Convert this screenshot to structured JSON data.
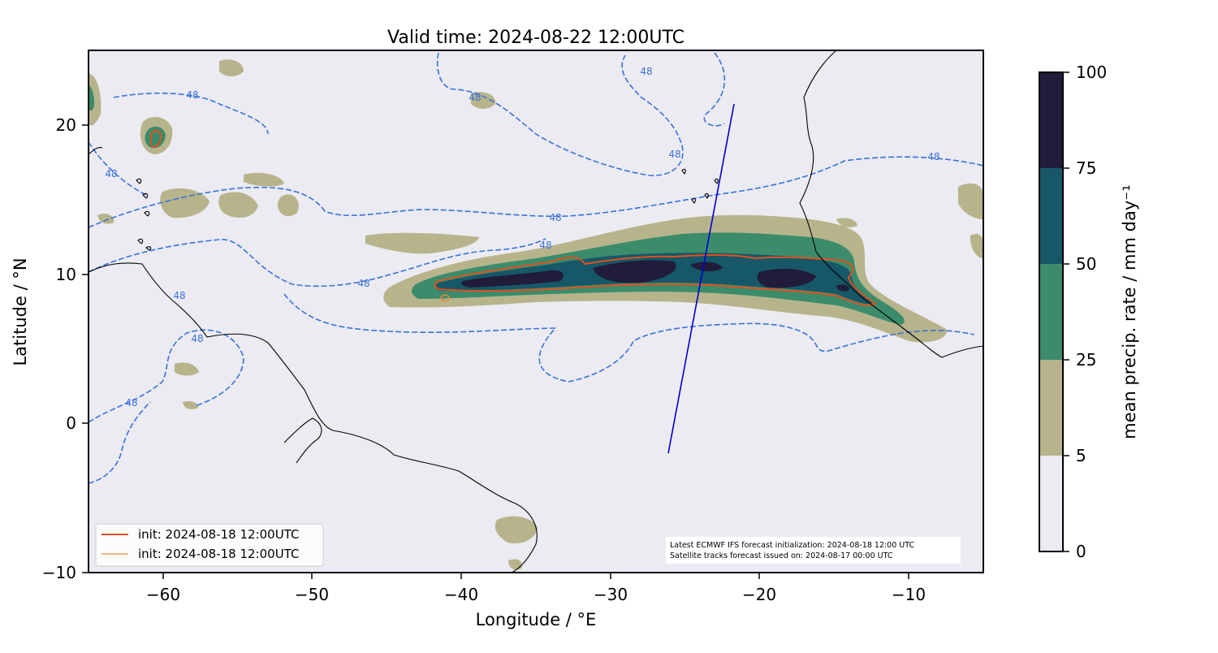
{
  "title": "Valid time: 2024-08-22 12:00UTC",
  "xlabel": "Longitude / °E",
  "ylabel": "Latitude / °N",
  "x_ticks": [
    "−60",
    "−50",
    "−40",
    "−30",
    "−20",
    "−10"
  ],
  "y_ticks": [
    "20",
    "10",
    "0",
    "−10"
  ],
  "legend": {
    "entries": [
      {
        "label": "init: 2024-08-18 12:00UTC",
        "color": "#e0501e"
      },
      {
        "label": "init: 2024-08-18 12:00UTC",
        "color": "#f08a3c"
      }
    ],
    "position": "lower-left"
  },
  "annotation": {
    "line1": "Latest ECMWF IFS forecast initialization: 2024-08-18 12:00 UTC",
    "line2": "Satellite tracks forecast issued on: 2024-08-17 00:00 UTC"
  },
  "colorbar": {
    "label": "mean precip. rate / mm day⁻¹",
    "ticks": [
      "100",
      "75",
      "50",
      "25",
      "5",
      "0"
    ],
    "levels": [
      {
        "from": 0,
        "to": 5,
        "color": "#ecebf2"
      },
      {
        "from": 5,
        "to": 25,
        "color": "#b7b48c"
      },
      {
        "from": 25,
        "to": 50,
        "color": "#3c8c6c"
      },
      {
        "from": 50,
        "to": 75,
        "color": "#165868"
      },
      {
        "from": 75,
        "to": 100,
        "color": "#201c3a"
      }
    ]
  },
  "contour_label": "48",
  "colors": {
    "background": "#ecebf2",
    "contour": "#3a72d8",
    "track": "#0000cc",
    "coastline": "#000000"
  },
  "chart_data": {
    "type": "heatmap",
    "xlim": [
      -65,
      -5
    ],
    "ylim": [
      -10,
      25
    ],
    "satellite_track": [
      [
        -26.2,
        -2.0
      ],
      [
        -21.8,
        21.5
      ]
    ],
    "contour_level": 48
  }
}
